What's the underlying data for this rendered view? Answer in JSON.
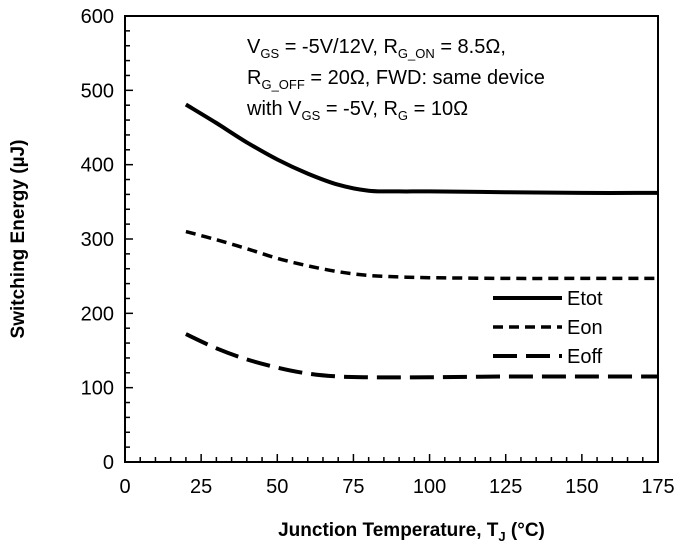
{
  "chart_data": {
    "type": "line",
    "title": "",
    "xlabel": "Junction Temperature, T",
    "xlabel_sub": "J",
    "xlabel_unit": " (°C)",
    "ylabel": "Switching Energy (µJ)",
    "xlim": [
      0,
      175
    ],
    "ylim": [
      0,
      600
    ],
    "x_ticks": [
      0,
      25,
      50,
      75,
      100,
      125,
      150,
      175
    ],
    "y_ticks": [
      0,
      100,
      200,
      300,
      400,
      500,
      600
    ],
    "x_tick_labels": [
      "0",
      "25",
      "50",
      "75",
      "100",
      "125",
      "150",
      "175"
    ],
    "y_tick_labels": [
      "0",
      "100",
      "200",
      "300",
      "400",
      "500",
      "600"
    ],
    "grid": false,
    "legend_position": "right",
    "series": [
      {
        "name": "Etot",
        "style": "solid",
        "x": [
          20,
          30,
          40,
          50,
          60,
          70,
          80,
          90,
          100,
          125,
          150,
          175
        ],
        "y": [
          481,
          456,
          430,
          407,
          388,
          373,
          365,
          364,
          364,
          363,
          362,
          362
        ]
      },
      {
        "name": "Eon",
        "style": "dashed",
        "x": [
          20,
          30,
          40,
          50,
          60,
          70,
          80,
          90,
          100,
          125,
          150,
          175
        ],
        "y": [
          310,
          299,
          287,
          274,
          264,
          256,
          251,
          249,
          248,
          247,
          247,
          247
        ]
      },
      {
        "name": "Eoff",
        "style": "longdash",
        "x": [
          20,
          30,
          40,
          50,
          60,
          70,
          80,
          100,
          125,
          150,
          175
        ],
        "y": [
          172,
          153,
          138,
          127,
          119,
          115,
          114,
          114,
          115,
          115,
          115
        ]
      }
    ],
    "annotation": {
      "line1": [
        {
          "t": "V"
        },
        {
          "t": "GS",
          "sub": true
        },
        {
          "t": " = -5V/12V, R"
        },
        {
          "t": "G_ON",
          "sub": true
        },
        {
          "t": " = 8.5Ω,"
        }
      ],
      "line2": [
        {
          "t": "R"
        },
        {
          "t": "G_OFF",
          "sub": true
        },
        {
          "t": " = 20Ω, FWD: same device"
        }
      ],
      "line3": [
        {
          "t": "with V"
        },
        {
          "t": "GS",
          "sub": true
        },
        {
          "t": " = -5V, R"
        },
        {
          "t": "G",
          "sub": true
        },
        {
          "t": " = 10Ω"
        }
      ]
    }
  }
}
